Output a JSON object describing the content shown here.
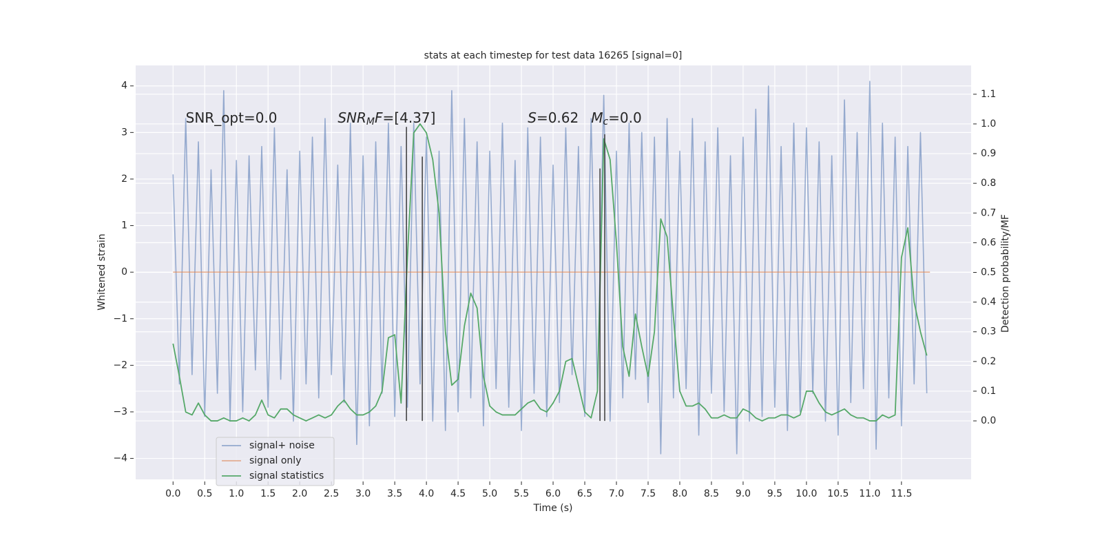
{
  "chart_data": {
    "type": "line",
    "title": "stats at each timestep for test data 16265 [signal=0]",
    "xlabel": "Time (s)",
    "ylabel": "Whitened strain",
    "y2label": "Detection probability/MF",
    "xlim": [
      -0.59,
      12.6
    ],
    "ylim": [
      -4.45,
      4.44
    ],
    "y2lim": [
      -0.197,
      1.197
    ],
    "xticks": [
      {
        "value": 0,
        "label": "0.0"
      },
      0.5,
      {
        "value": 1,
        "label": "1.0"
      },
      1.5,
      {
        "value": 2,
        "label": "2.0"
      },
      2.5,
      {
        "value": 3,
        "label": "3.0"
      },
      3.5,
      {
        "value": 4,
        "label": "4.0"
      },
      4.5,
      {
        "value": 5,
        "label": "5.0"
      },
      5.5,
      {
        "value": 6,
        "label": "6.0"
      },
      6.5,
      {
        "value": 7,
        "label": "7.0"
      },
      7.5,
      {
        "value": 8,
        "label": "8.0"
      },
      8.5,
      {
        "value": 9,
        "label": "9.0"
      },
      9.5,
      {
        "value": 10,
        "label": "10.0"
      },
      10.5,
      {
        "value": 11,
        "label": "11.0"
      },
      11.5
    ],
    "yticks": [
      {
        "value": -4,
        "label": "−4"
      },
      {
        "value": -3,
        "label": "−3"
      },
      {
        "value": -2,
        "label": "−2"
      },
      {
        "value": -1,
        "label": "−1"
      },
      0,
      1,
      2,
      3,
      4
    ],
    "y2ticks": [
      {
        "value": 0,
        "label": "0.0"
      },
      0.1,
      0.2,
      0.3,
      0.4,
      0.5,
      0.6,
      0.7,
      0.8,
      0.9,
      {
        "value": 1,
        "label": "1.0"
      },
      1.1
    ],
    "grid": true,
    "legend": "lower left",
    "series": [
      {
        "name": "signal+ noise",
        "color": "#4c72b0",
        "x": [
          0,
          0.1,
          0.2,
          0.3,
          0.4,
          0.5,
          0.6,
          0.7,
          0.8,
          0.9,
          1,
          1.1,
          1.2,
          1.3,
          1.4,
          1.5,
          1.6,
          1.7,
          1.8,
          1.9,
          2,
          2.1,
          2.2,
          2.3,
          2.4,
          2.5,
          2.6,
          2.7,
          2.8,
          2.9,
          3,
          3.1,
          3.2,
          3.3,
          3.4,
          3.5,
          3.6,
          3.7,
          3.8,
          3.9,
          4,
          4.1,
          4.2,
          4.3,
          4.4,
          4.5,
          4.6,
          4.7,
          4.8,
          4.9,
          5,
          5.1,
          5.2,
          5.3,
          5.4,
          5.5,
          5.6,
          5.7,
          5.8,
          5.9,
          6,
          6.1,
          6.2,
          6.3,
          6.4,
          6.5,
          6.6,
          6.7,
          6.8,
          6.9,
          7,
          7.1,
          7.2,
          7.3,
          7.4,
          7.5,
          7.6,
          7.7,
          7.8,
          7.9,
          8,
          8.1,
          8.2,
          8.3,
          8.4,
          8.5,
          8.6,
          8.7,
          8.8,
          8.9,
          9,
          9.1,
          9.2,
          9.3,
          9.4,
          9.5,
          9.6,
          9.7,
          9.8,
          9.9,
          10,
          10.1,
          10.2,
          10.3,
          10.4,
          10.5,
          10.6,
          10.7,
          10.8,
          10.9,
          11,
          11.1,
          11.2,
          11.3,
          11.4,
          11.5,
          11.6,
          11.7,
          11.8,
          11.9
        ],
        "values": [
          2.1,
          -2.4,
          3.3,
          -2.2,
          2.8,
          -3.1,
          2.2,
          -2.6,
          3.9,
          -3.2,
          2.4,
          -3.0,
          2.5,
          -2.1,
          2.7,
          -2.9,
          3.1,
          -2.3,
          2.2,
          -3.2,
          2.6,
          -2.4,
          2.9,
          -2.7,
          3.3,
          -2.2,
          2.3,
          -2.8,
          3.2,
          -3.7,
          2.5,
          -3.3,
          2.8,
          -2.6,
          3.2,
          -3.1,
          2.7,
          -2.9,
          3.2,
          -2.4,
          2.9,
          -3.2,
          2.6,
          -3.4,
          3.9,
          -3.0,
          3.3,
          -2.7,
          2.8,
          -3.3,
          2.6,
          -2.5,
          3.2,
          -2.9,
          2.4,
          -3.4,
          3.1,
          -2.6,
          2.9,
          -3.1,
          2.3,
          -2.8,
          3.1,
          -2.2,
          2.7,
          -3.1,
          3.3,
          -2.5,
          3.8,
          -3.2,
          2.6,
          -2.7,
          3.2,
          -2.3,
          3.0,
          -2.8,
          2.9,
          -3.9,
          3.3,
          -2.7,
          2.6,
          -2.5,
          3.3,
          -3.5,
          2.8,
          -2.6,
          3.1,
          -3.0,
          2.5,
          -3.9,
          2.9,
          -3.2,
          3.5,
          -3.1,
          4.0,
          -2.9,
          2.7,
          -3.4,
          3.2,
          -3.0,
          3.1,
          -2.6,
          2.8,
          -3.2,
          2.5,
          -3.5,
          3.7,
          -2.8,
          3.0,
          -2.5,
          4.1,
          -3.8,
          3.2,
          -2.7,
          2.9,
          -3.3,
          2.7,
          -2.4,
          3.0,
          -2.6
        ]
      },
      {
        "name": "signal only",
        "color": "#dd8452",
        "x": [
          0,
          11.95
        ],
        "values": [
          0,
          0
        ]
      },
      {
        "name": "signal statistics",
        "color": "#55a868",
        "axis": "y2",
        "x": [
          0,
          0.1,
          0.2,
          0.3,
          0.4,
          0.5,
          0.6,
          0.7,
          0.8,
          0.9,
          1,
          1.1,
          1.2,
          1.3,
          1.4,
          1.5,
          1.6,
          1.7,
          1.8,
          1.9,
          2,
          2.1,
          2.2,
          2.3,
          2.4,
          2.5,
          2.6,
          2.7,
          2.8,
          2.9,
          3,
          3.1,
          3.2,
          3.3,
          3.4,
          3.5,
          3.6,
          3.7,
          3.8,
          3.9,
          4,
          4.1,
          4.2,
          4.3,
          4.4,
          4.5,
          4.6,
          4.7,
          4.8,
          4.9,
          5,
          5.1,
          5.2,
          5.3,
          5.4,
          5.5,
          5.6,
          5.7,
          5.8,
          5.9,
          6,
          6.1,
          6.2,
          6.3,
          6.4,
          6.5,
          6.6,
          6.7,
          6.8,
          6.9,
          7,
          7.1,
          7.2,
          7.3,
          7.4,
          7.5,
          7.6,
          7.7,
          7.8,
          7.9,
          8,
          8.1,
          8.2,
          8.3,
          8.4,
          8.5,
          8.6,
          8.7,
          8.8,
          8.9,
          9,
          9.1,
          9.2,
          9.3,
          9.4,
          9.5,
          9.6,
          9.7,
          9.8,
          9.9,
          10,
          10.1,
          10.2,
          10.3,
          10.4,
          10.5,
          10.6,
          10.7,
          10.8,
          10.9,
          11,
          11.1,
          11.2,
          11.3,
          11.4,
          11.5,
          11.6,
          11.7,
          11.8,
          11.9
        ],
        "values": [
          0.26,
          0.15,
          0.03,
          0.02,
          0.06,
          0.02,
          0.0,
          0.0,
          0.01,
          0.0,
          0.0,
          0.01,
          0.0,
          0.02,
          0.07,
          0.02,
          0.01,
          0.04,
          0.04,
          0.02,
          0.01,
          0.0,
          0.01,
          0.02,
          0.01,
          0.02,
          0.05,
          0.07,
          0.04,
          0.02,
          0.02,
          0.03,
          0.05,
          0.1,
          0.28,
          0.29,
          0.06,
          0.55,
          0.97,
          1.0,
          0.97,
          0.88,
          0.7,
          0.3,
          0.12,
          0.14,
          0.32,
          0.43,
          0.38,
          0.15,
          0.05,
          0.03,
          0.02,
          0.02,
          0.02,
          0.04,
          0.06,
          0.07,
          0.04,
          0.03,
          0.06,
          0.1,
          0.2,
          0.21,
          0.12,
          0.03,
          0.01,
          0.1,
          0.95,
          0.88,
          0.6,
          0.25,
          0.15,
          0.36,
          0.25,
          0.15,
          0.3,
          0.68,
          0.62,
          0.35,
          0.1,
          0.05,
          0.05,
          0.06,
          0.04,
          0.01,
          0.01,
          0.02,
          0.01,
          0.01,
          0.04,
          0.03,
          0.01,
          0.0,
          0.01,
          0.01,
          0.02,
          0.02,
          0.01,
          0.02,
          0.1,
          0.1,
          0.06,
          0.03,
          0.02,
          0.03,
          0.04,
          0.02,
          0.01,
          0.01,
          0.0,
          0.0,
          0.02,
          0.01,
          0.02,
          0.55,
          0.65,
          0.4,
          0.3,
          0.22
        ]
      }
    ],
    "vlines": [
      {
        "x": 3.685,
        "top": 0.99
      },
      {
        "x": 3.935,
        "top": 0.89
      },
      {
        "x": 6.74,
        "top": 0.85
      },
      {
        "x": 6.815,
        "top": 0.965
      }
    ],
    "annotations": [
      {
        "x": 0.2,
        "y": 3.3,
        "parts": [
          {
            "text": "SNR_opt=0.0"
          }
        ]
      },
      {
        "x": 2.6,
        "y": 3.3,
        "parts": [
          {
            "text": "SNR",
            "italic": true
          },
          {
            "text": "M",
            "italic": true,
            "sub": true
          },
          {
            "text": "F",
            "italic": true
          },
          {
            "text": "=[4.37]"
          }
        ]
      },
      {
        "x": 5.6,
        "y": 3.3,
        "parts": [
          {
            "text": "S",
            "italic": true
          },
          {
            "text": "=0.62"
          }
        ]
      },
      {
        "x": 6.6,
        "y": 3.3,
        "parts": [
          {
            "text": "M",
            "italic": true
          },
          {
            "text": "c",
            "italic": true,
            "sub": true
          },
          {
            "text": "=0.0"
          }
        ]
      }
    ]
  }
}
